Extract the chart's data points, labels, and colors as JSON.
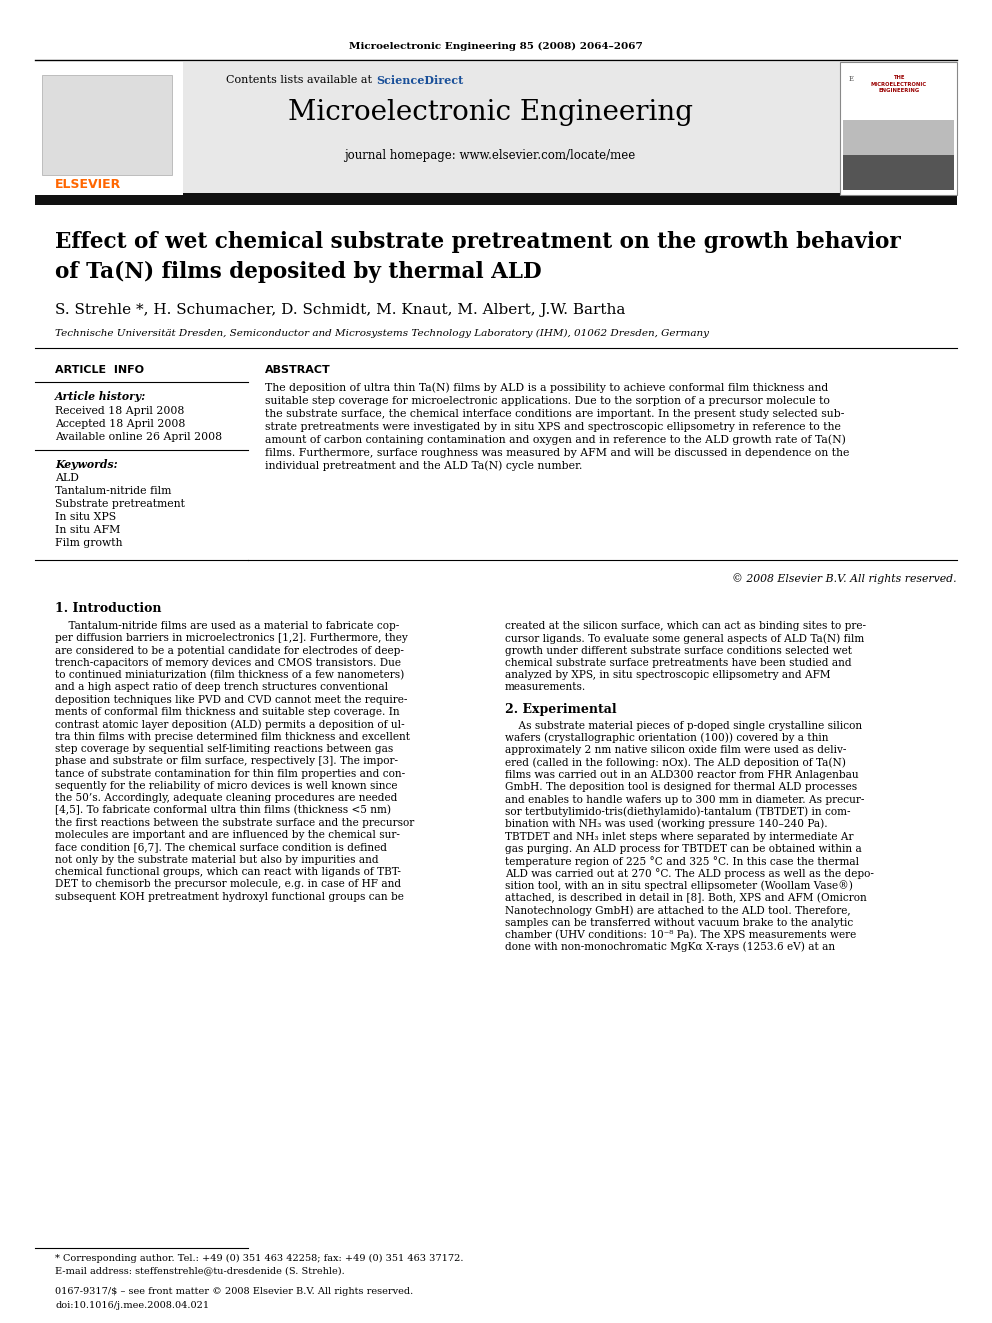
{
  "page_title_journal": "Microelectronic Engineering 85 (2008) 2064–2067",
  "header_contents_pre": "Contents lists available at ",
  "header_contents_link": "ScienceDirect",
  "header_journal_name": "Microelectronic Engineering",
  "header_homepage": "journal homepage: www.elsevier.com/locate/mee",
  "article_title_line1": "Effect of wet chemical substrate pretreatment on the growth behavior",
  "article_title_line2": "of Ta(N) films deposited by thermal ALD",
  "authors": "S. Strehle *, H. Schumacher, D. Schmidt, M. Knaut, M. Albert, J.W. Bartha",
  "affiliation": "Technische Universität Dresden, Semiconductor and Microsystems Technology Laboratory (IHM), 01062 Dresden, Germany",
  "article_info_header": "ARTICLE  INFO",
  "article_history_label": "Article history:",
  "received": "Received 18 April 2008",
  "accepted": "Accepted 18 April 2008",
  "available": "Available online 26 April 2008",
  "keywords_label": "Keywords:",
  "keywords": [
    "ALD",
    "Tantalum-nitride film",
    "Substrate pretreatment",
    "In situ XPS",
    "In situ AFM",
    "Film growth"
  ],
  "abstract_header": "ABSTRACT",
  "abstract_text": "The deposition of ultra thin Ta(N) films by ALD is a possibility to achieve conformal film thickness and\nsuitable step coverage for microelectronic applications. Due to the sorption of a precursor molecule to\nthe substrate surface, the chemical interface conditions are important. In the present study selected sub-\nstrate pretreatments were investigated by in situ XPS and spectroscopic ellipsometry in reference to the\namount of carbon containing contamination and oxygen and in reference to the ALD growth rate of Ta(N)\nfilms. Furthermore, surface roughness was measured by AFM and will be discussed in dependence on the\nindividual pretreatment and the ALD Ta(N) cycle number.",
  "copyright": "© 2008 Elsevier B.V. All rights reserved.",
  "section1_header": "1. Introduction",
  "section1_col1_lines": [
    "    Tantalum-nitride films are used as a material to fabricate cop-",
    "per diffusion barriers in microelectronics [1,2]. Furthermore, they",
    "are considered to be a potential candidate for electrodes of deep-",
    "trench-capacitors of memory devices and CMOS transistors. Due",
    "to continued miniaturization (film thickness of a few nanometers)",
    "and a high aspect ratio of deep trench structures conventional",
    "deposition techniques like PVD and CVD cannot meet the require-",
    "ments of conformal film thickness and suitable step coverage. In",
    "contrast atomic layer deposition (ALD) permits a deposition of ul-",
    "tra thin films with precise determined film thickness and excellent",
    "step coverage by sequential self-limiting reactions between gas",
    "phase and substrate or film surface, respectively [3]. The impor-",
    "tance of substrate contamination for thin film properties and con-",
    "sequently for the reliability of micro devices is well known since",
    "the 50’s. Accordingly, adequate cleaning procedures are needed",
    "[4,5]. To fabricate conformal ultra thin films (thickness <5 nm)",
    "the first reactions between the substrate surface and the precursor",
    "molecules are important and are influenced by the chemical sur-",
    "face condition [6,7]. The chemical surface condition is defined",
    "not only by the substrate material but also by impurities and",
    "chemical functional groups, which can react with ligands of TBT-",
    "DET to chemisorb the precursor molecule, e.g. in case of HF and",
    "subsequent KOH pretreatment hydroxyl functional groups can be"
  ],
  "section1_col2_lines": [
    "created at the silicon surface, which can act as binding sites to pre-",
    "cursor ligands. To evaluate some general aspects of ALD Ta(N) film",
    "growth under different substrate surface conditions selected wet",
    "chemical substrate surface pretreatments have been studied and",
    "analyzed by XPS, in situ spectroscopic ellipsometry and AFM",
    "measurements."
  ],
  "section2_header": "2. Experimental",
  "section2_col2_lines": [
    "    As substrate material pieces of p-doped single crystalline silicon",
    "wafers (crystallographic orientation (100)) covered by a thin",
    "approximately 2 nm native silicon oxide film were used as deliv-",
    "ered (called in the following: nOx). The ALD deposition of Ta(N)",
    "films was carried out in an ALD300 reactor from FHR Anlagenbau",
    "GmbH. The deposition tool is designed for thermal ALD processes",
    "and enables to handle wafers up to 300 mm in diameter. As precur-",
    "sor tertbutylimido-tris(diethylamido)-tantalum (TBTDET) in com-",
    "bination with NH₃ was used (working pressure 140–240 Pa).",
    "TBTDET and NH₃ inlet steps where separated by intermediate Ar",
    "gas purging. An ALD process for TBTDET can be obtained within a",
    "temperature region of 225 °C and 325 °C. In this case the thermal",
    "ALD was carried out at 270 °C. The ALD process as well as the depo-",
    "sition tool, with an in situ spectral ellipsometer (Woollam Vase®)",
    "attached, is described in detail in [8]. Both, XPS and AFM (Omicron",
    "Nanotechnology GmbH) are attached to the ALD tool. Therefore,",
    "samples can be transferred without vacuum brake to the analytic",
    "chamber (UHV conditions: 10⁻⁸ Pa). The XPS measurements were",
    "done with non-monochromatic MgKα X-rays (1253.6 eV) at an"
  ],
  "footnote_star": "* Corresponding author. Tel.: +49 (0) 351 463 42258; fax: +49 (0) 351 463 37172.",
  "footnote_email": "E-mail address: steffenstrehle@tu-dresdenide (S. Strehle).",
  "footer_issn": "0167-9317/$ – see front matter © 2008 Elsevier B.V. All rights reserved.",
  "footer_doi": "doi:10.1016/j.mee.2008.04.021",
  "background_color": "#ffffff",
  "header_bg_color": "#e8e8e8",
  "elsevier_color": "#ff6600",
  "sciencedirect_color": "#1a5099"
}
